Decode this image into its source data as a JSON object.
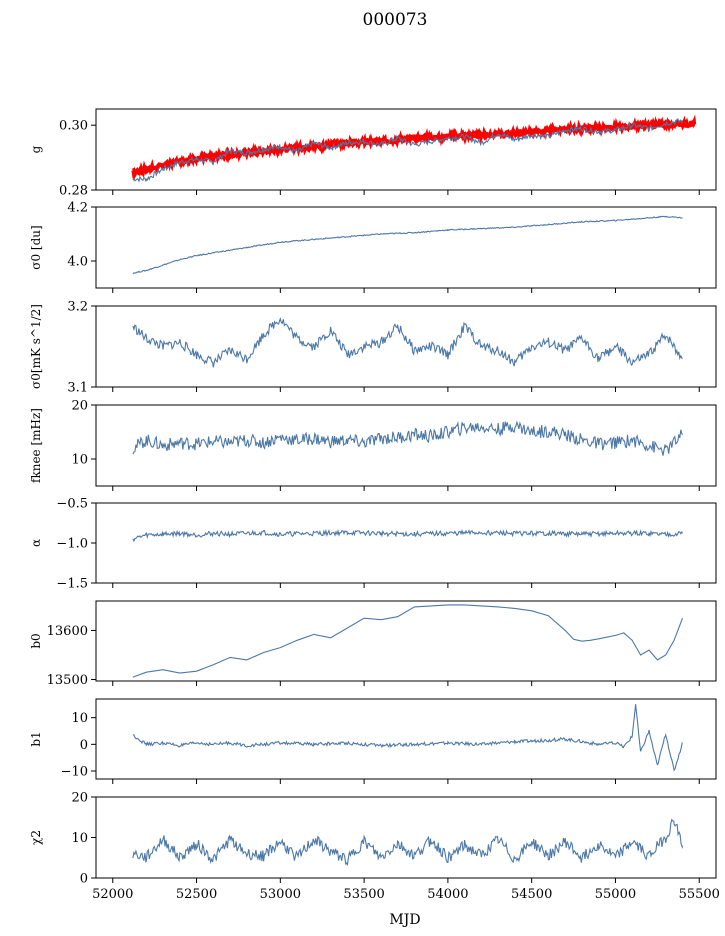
{
  "title": "000073",
  "colors": {
    "series": "#4c78a8",
    "overlay": "#ff0000",
    "axis": "#000000"
  },
  "xaxis": {
    "label": "MJD",
    "xlim": [
      51900,
      55600
    ],
    "ticks": [
      52000,
      52500,
      53000,
      53500,
      54000,
      54500,
      55000,
      55500
    ],
    "tick_labels": [
      "52000",
      "52500",
      "53000",
      "53500",
      "54000",
      "54500",
      "55000",
      "55500"
    ]
  },
  "chart_data": [
    {
      "type": "line",
      "ylabel": "g",
      "ylim": [
        0.28,
        0.305
      ],
      "yticks": [
        0.28,
        0.3
      ],
      "ytick_labels": [
        "0.28",
        "0.30"
      ],
      "series": [
        {
          "x": [
            52120,
            52200,
            52300,
            52400,
            52500,
            52600,
            52700,
            52800,
            52900,
            53000,
            53100,
            53200,
            53300,
            53400,
            53500,
            53600,
            53700,
            53800,
            53900,
            54000,
            54100,
            54200,
            54300,
            54400,
            54500,
            54600,
            54700,
            54800,
            54900,
            55000,
            55100,
            55200,
            55300,
            55400
          ],
          "y": [
            0.2835,
            0.2833,
            0.2865,
            0.2885,
            0.2895,
            0.2888,
            0.292,
            0.2915,
            0.2925,
            0.2935,
            0.2918,
            0.2945,
            0.293,
            0.2945,
            0.295,
            0.294,
            0.296,
            0.294,
            0.295,
            0.296,
            0.2965,
            0.2945,
            0.2975,
            0.2955,
            0.297,
            0.2965,
            0.2985,
            0.299,
            0.298,
            0.2985,
            0.3,
            0.299,
            0.3005,
            0.3015
          ]
        }
      ],
      "overlay": {
        "x": [
          52120,
          52250,
          52400,
          52600,
          52800,
          53000,
          53200,
          53400,
          53600,
          53800,
          54000,
          54200,
          54400,
          54600,
          54800,
          55000,
          55200,
          55400,
          55470
        ],
        "y": [
          0.2855,
          0.287,
          0.289,
          0.2905,
          0.2915,
          0.2925,
          0.2935,
          0.2945,
          0.295,
          0.296,
          0.2965,
          0.297,
          0.2975,
          0.2983,
          0.299,
          0.2995,
          0.3,
          0.3005,
          0.3003
        ]
      }
    },
    {
      "type": "line",
      "ylabel": "σ0 [du]",
      "ylim": [
        3.9,
        4.2
      ],
      "yticks": [
        4.0,
        4.2
      ],
      "ytick_labels": [
        "4.0",
        "4.2"
      ],
      "series": [
        {
          "x": [
            52120,
            52200,
            52300,
            52400,
            52500,
            52600,
            52700,
            52800,
            52900,
            53000,
            53200,
            53400,
            53600,
            53800,
            54000,
            54200,
            54400,
            54600,
            54800,
            55000,
            55200,
            55300,
            55400
          ],
          "y": [
            3.955,
            3.965,
            3.985,
            4.005,
            4.02,
            4.03,
            4.04,
            4.05,
            4.06,
            4.07,
            4.08,
            4.09,
            4.1,
            4.105,
            4.115,
            4.12,
            4.125,
            4.135,
            4.145,
            4.15,
            4.16,
            4.165,
            4.16
          ]
        }
      ]
    },
    {
      "type": "line",
      "ylabel": "σ0[mK s^1/2]",
      "ylim": [
        3.1,
        3.2
      ],
      "yticks": [
        3.1,
        3.2
      ],
      "ytick_labels": [
        "3.1",
        "3.2"
      ],
      "series": [
        {
          "x": [
            52120,
            52200,
            52300,
            52400,
            52500,
            52600,
            52700,
            52800,
            52900,
            53000,
            53100,
            53200,
            53300,
            53400,
            53500,
            53600,
            53700,
            53800,
            53900,
            54000,
            54100,
            54200,
            54300,
            54400,
            54500,
            54600,
            54700,
            54800,
            54900,
            55000,
            55100,
            55200,
            55300,
            55400
          ],
          "y": [
            3.175,
            3.16,
            3.15,
            3.155,
            3.14,
            3.13,
            3.145,
            3.135,
            3.165,
            3.185,
            3.16,
            3.15,
            3.17,
            3.14,
            3.15,
            3.155,
            3.175,
            3.145,
            3.15,
            3.14,
            3.175,
            3.15,
            3.145,
            3.13,
            3.15,
            3.155,
            3.145,
            3.16,
            3.135,
            3.15,
            3.13,
            3.14,
            3.165,
            3.135
          ]
        }
      ]
    },
    {
      "type": "line",
      "ylabel": "fknee [mHz]",
      "ylim": [
        5,
        20
      ],
      "yticks": [
        10,
        20
      ],
      "ytick_labels": [
        "10",
        "20"
      ],
      "series": [
        {
          "x": [
            52120,
            52200,
            52300,
            52400,
            52500,
            52600,
            52700,
            52800,
            52900,
            53000,
            53100,
            53200,
            53300,
            53400,
            53500,
            53600,
            53700,
            53800,
            53900,
            54000,
            54100,
            54200,
            54300,
            54400,
            54500,
            54600,
            54700,
            54800,
            54900,
            55000,
            55100,
            55200,
            55300,
            55400
          ],
          "y": [
            12.0,
            13.5,
            12.5,
            13.0,
            12.8,
            13.2,
            13.0,
            13.5,
            13.0,
            14.0,
            13.5,
            13.8,
            13.2,
            13.5,
            13.0,
            13.8,
            14.0,
            14.5,
            14.2,
            15.0,
            15.8,
            16.0,
            15.5,
            16.2,
            15.0,
            15.2,
            14.5,
            13.5,
            12.8,
            13.0,
            13.5,
            12.5,
            11.5,
            14.5
          ]
        }
      ]
    },
    {
      "type": "line",
      "ylabel": "α",
      "ylim": [
        -1.5,
        -0.5
      ],
      "yticks": [
        -1.5,
        -1.0,
        -0.5
      ],
      "ytick_labels": [
        "−1.5",
        "−1.0",
        "−0.5"
      ],
      "series": [
        {
          "x": [
            52120,
            52200,
            52300,
            52400,
            52500,
            52600,
            52700,
            52800,
            52900,
            53000,
            53200,
            53400,
            53600,
            53800,
            54000,
            54200,
            54400,
            54600,
            54800,
            55000,
            55200,
            55300,
            55400
          ],
          "y": [
            -0.95,
            -0.9,
            -0.89,
            -0.88,
            -0.9,
            -0.88,
            -0.89,
            -0.88,
            -0.87,
            -0.89,
            -0.88,
            -0.87,
            -0.88,
            -0.89,
            -0.88,
            -0.87,
            -0.88,
            -0.88,
            -0.89,
            -0.88,
            -0.88,
            -0.89,
            -0.88
          ]
        }
      ]
    },
    {
      "type": "line",
      "ylabel": "b0",
      "ylim": [
        13497,
        13660
      ],
      "yticks": [
        13500,
        13600
      ],
      "ytick_labels": [
        "13500",
        "13600"
      ],
      "series": [
        {
          "x": [
            52120,
            52200,
            52300,
            52400,
            52500,
            52600,
            52700,
            52800,
            52900,
            53000,
            53100,
            53200,
            53300,
            53400,
            53500,
            53600,
            53700,
            53800,
            53900,
            54000,
            54100,
            54200,
            54300,
            54400,
            54500,
            54600,
            54700,
            54750,
            54800,
            54850,
            54900,
            55000,
            55050,
            55100,
            55150,
            55200,
            55250,
            55300,
            55350,
            55400
          ],
          "y": [
            13505,
            13515,
            13520,
            13513,
            13517,
            13530,
            13545,
            13540,
            13555,
            13565,
            13580,
            13592,
            13585,
            13605,
            13625,
            13622,
            13628,
            13648,
            13650,
            13652,
            13652,
            13650,
            13648,
            13645,
            13640,
            13630,
            13600,
            13582,
            13578,
            13580,
            13583,
            13590,
            13595,
            13580,
            13550,
            13560,
            13540,
            13550,
            13580,
            13625
          ]
        }
      ]
    },
    {
      "type": "line",
      "ylabel": "b1",
      "ylim": [
        -13,
        17
      ],
      "yticks": [
        -10,
        0,
        10
      ],
      "ytick_labels": [
        "−10",
        "0",
        "10"
      ],
      "series": [
        {
          "x": [
            52120,
            52200,
            52300,
            52400,
            52500,
            52600,
            52700,
            52800,
            52900,
            53000,
            53200,
            53400,
            53600,
            53800,
            54000,
            54200,
            54400,
            54600,
            54700,
            54800,
            54900,
            55000,
            55050,
            55100,
            55120,
            55150,
            55200,
            55250,
            55300,
            55350,
            55400
          ],
          "y": [
            3.5,
            0.0,
            0.5,
            -0.5,
            0.5,
            0.0,
            0.5,
            -0.5,
            0.0,
            0.5,
            0.0,
            0.5,
            -0.5,
            0.0,
            0.5,
            0.0,
            1.0,
            1.5,
            2.0,
            1.0,
            0.0,
            0.5,
            -1.0,
            3.0,
            15.0,
            -3.0,
            5.0,
            -8.0,
            4.0,
            -10.0,
            0.5
          ]
        }
      ]
    },
    {
      "type": "line",
      "ylabel": "χ2",
      "ylim": [
        0,
        20
      ],
      "yticks": [
        0,
        10,
        20
      ],
      "ytick_labels": [
        "0",
        "10",
        "20"
      ],
      "series": [
        {
          "x": [
            52120,
            52200,
            52300,
            52400,
            52500,
            52600,
            52700,
            52800,
            52900,
            53000,
            53100,
            53200,
            53300,
            53400,
            53500,
            53600,
            53700,
            53800,
            53900,
            54000,
            54100,
            54200,
            54300,
            54400,
            54500,
            54600,
            54700,
            54800,
            54900,
            55000,
            55100,
            55200,
            55300,
            55350,
            55400
          ],
          "y": [
            6.0,
            5.0,
            9.5,
            5.0,
            8.5,
            4.5,
            9.5,
            6.0,
            5.5,
            9.0,
            5.0,
            9.5,
            6.5,
            4.5,
            9.0,
            5.0,
            8.5,
            5.5,
            9.5,
            5.0,
            8.0,
            5.5,
            9.5,
            4.5,
            9.0,
            5.5,
            9.0,
            5.0,
            8.5,
            5.0,
            9.0,
            5.5,
            10.0,
            14.5,
            8.0
          ]
        }
      ]
    }
  ]
}
